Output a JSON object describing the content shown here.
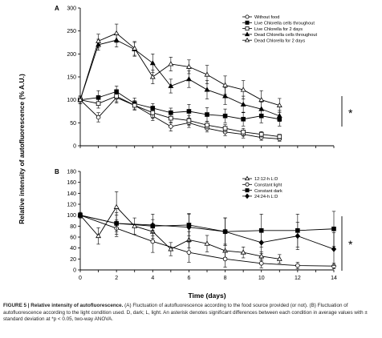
{
  "y_axis_label": "Relative intensity of autofluorescence (% A.U.)",
  "x_axis_label": "Time (days)",
  "caption": {
    "lead": "FIGURE 5 | Relative intensity of autofluorescence.",
    "text": " (A) Fluctuation of autofluorescence according to the food source provided (or not). (B) Fluctuation of autofluorescence according to the light condition used. D, dark; L, light. An asterisk denotes significant differences between each condition in average values with ± standard deviation at *p < 0.05, two-way ANOVA."
  },
  "chart_data": [
    {
      "type": "line",
      "panel": "A",
      "xlim": [
        0,
        14
      ],
      "ylim": [
        0,
        300
      ],
      "y_ticks": [
        0,
        50,
        100,
        150,
        200,
        250,
        300
      ],
      "x_ticks": [],
      "legend_position": "top-right",
      "significance": "*",
      "series": [
        {
          "name": "Without food",
          "marker": "circle-open",
          "x": [
            0,
            1,
            2,
            3,
            4,
            5,
            6,
            7,
            8,
            9,
            10,
            11
          ],
          "y": [
            100,
            62,
            105,
            88,
            65,
            42,
            50,
            38,
            30,
            25,
            18,
            15
          ],
          "err": [
            8,
            10,
            12,
            10,
            10,
            10,
            10,
            8,
            8,
            8,
            6,
            5
          ]
        },
        {
          "name": "Live Chlorella cells throughout",
          "marker": "square-filled",
          "x": [
            0,
            1,
            2,
            3,
            4,
            5,
            6,
            7,
            8,
            9,
            10,
            11
          ],
          "y": [
            100,
            105,
            118,
            92,
            82,
            72,
            75,
            68,
            65,
            58,
            65,
            58
          ],
          "err": [
            8,
            15,
            12,
            12,
            10,
            10,
            15,
            15,
            15,
            15,
            15,
            15
          ]
        },
        {
          "name": "Live Chlorella for 2 days",
          "marker": "square-open",
          "x": [
            0,
            1,
            2,
            3,
            4,
            5,
            6,
            7,
            8,
            9,
            10,
            11
          ],
          "y": [
            100,
            92,
            108,
            88,
            72,
            60,
            55,
            45,
            38,
            30,
            25,
            20
          ],
          "err": [
            8,
            10,
            12,
            10,
            12,
            10,
            10,
            8,
            8,
            8,
            6,
            5
          ]
        },
        {
          "name": "Dead Chlorella cells throughout",
          "marker": "triangle-filled",
          "x": [
            0,
            1,
            2,
            3,
            4,
            5,
            6,
            7,
            8,
            9,
            10,
            11
          ],
          "y": [
            100,
            220,
            230,
            210,
            180,
            130,
            145,
            122,
            108,
            90,
            80,
            65
          ],
          "err": [
            8,
            12,
            15,
            15,
            20,
            15,
            18,
            20,
            18,
            18,
            15,
            12
          ]
        },
        {
          "name": "Dead Chlorella for 2 days",
          "marker": "triangle-open",
          "x": [
            0,
            1,
            2,
            3,
            4,
            5,
            6,
            7,
            8,
            9,
            10,
            11
          ],
          "y": [
            100,
            228,
            245,
            212,
            150,
            178,
            172,
            155,
            132,
            122,
            100,
            88
          ],
          "err": [
            8,
            15,
            20,
            15,
            15,
            15,
            15,
            20,
            20,
            20,
            20,
            15
          ]
        }
      ]
    },
    {
      "type": "line",
      "panel": "B",
      "xlim": [
        0,
        14
      ],
      "ylim": [
        0,
        180
      ],
      "y_ticks": [
        0,
        20,
        40,
        60,
        80,
        100,
        120,
        140,
        160,
        180
      ],
      "x_ticks": [
        0,
        2,
        4,
        6,
        8,
        10,
        12,
        14
      ],
      "legend_position": "top-right",
      "significance": "*",
      "series": [
        {
          "name": "12:12-h L:D",
          "marker": "triangle-open",
          "x": [
            0,
            1,
            2,
            3,
            4,
            5,
            6,
            7,
            8,
            9,
            10,
            11
          ],
          "y": [
            100,
            62,
            115,
            80,
            70,
            38,
            55,
            48,
            35,
            32,
            25,
            20
          ],
          "err": [
            5,
            15,
            28,
            15,
            12,
            12,
            15,
            15,
            12,
            10,
            8,
            8
          ]
        },
        {
          "name": "Constant light",
          "marker": "circle-open",
          "x": [
            0,
            2,
            4,
            6,
            8,
            10,
            12,
            14
          ],
          "y": [
            100,
            76,
            52,
            32,
            20,
            12,
            8,
            7
          ],
          "err": [
            5,
            15,
            20,
            18,
            15,
            8,
            6,
            5
          ]
        },
        {
          "name": "Constant dark",
          "marker": "square-filled",
          "x": [
            0,
            2,
            4,
            6,
            8,
            10,
            12,
            14
          ],
          "y": [
            100,
            85,
            80,
            82,
            70,
            72,
            72,
            75
          ],
          "err": [
            5,
            15,
            12,
            20,
            25,
            30,
            30,
            32
          ]
        },
        {
          "name": "24:24-h L:D",
          "marker": "diamond-filled",
          "x": [
            0,
            2,
            4,
            6,
            8,
            10,
            12,
            14
          ],
          "y": [
            100,
            85,
            82,
            78,
            70,
            50,
            62,
            38
          ],
          "err": [
            5,
            20,
            20,
            25,
            25,
            20,
            25,
            30
          ]
        }
      ]
    }
  ]
}
